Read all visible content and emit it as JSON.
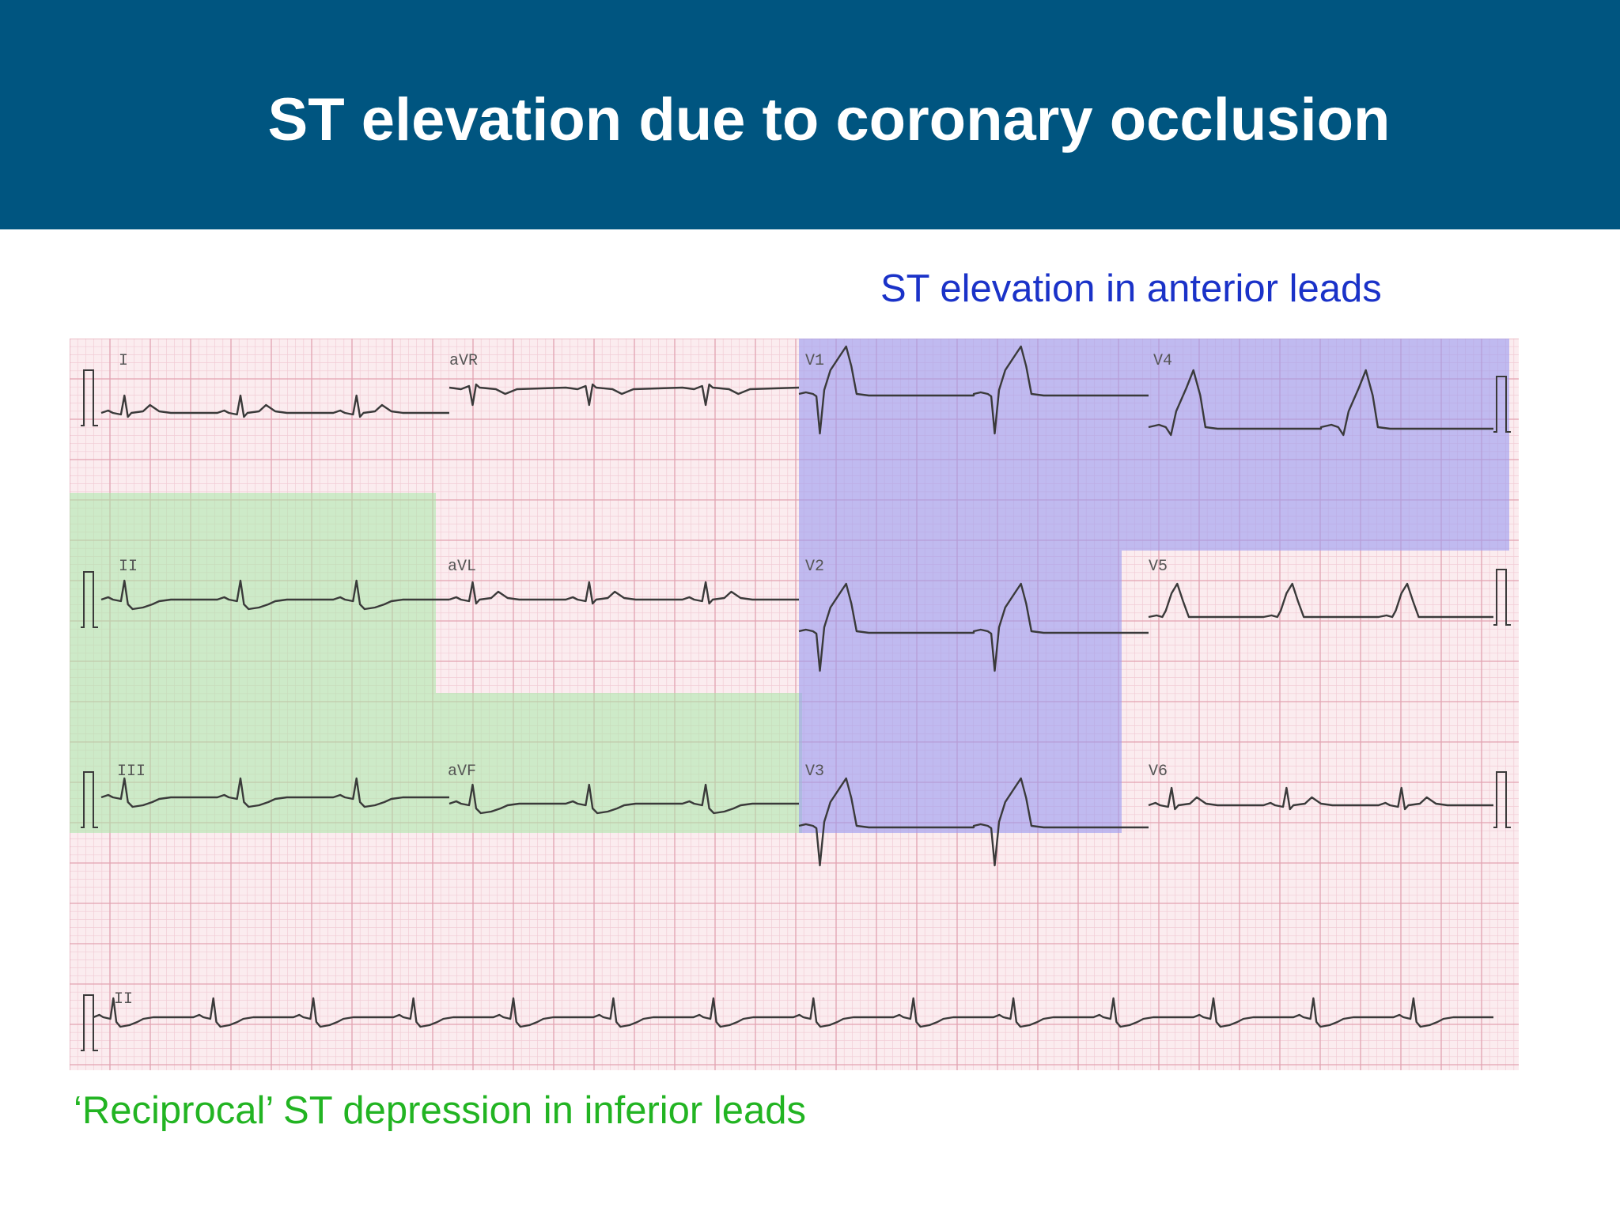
{
  "slide": {
    "title": "ST elevation due to coronary occlusion",
    "header_color": "#005580"
  },
  "annotations": {
    "anterior": {
      "text": "ST elevation in anterior leads",
      "color": "#1a32c8",
      "highlight": "#9a9af0",
      "leads": [
        "V1",
        "V2",
        "V3",
        "V4"
      ]
    },
    "inferior": {
      "text": "‘Reciprocal’ ST depression in inferior leads",
      "color": "#22b422",
      "highlight": "#a8eaa8",
      "leads": [
        "II",
        "III",
        "aVF"
      ]
    }
  },
  "ecg": {
    "paper_color": "#fbecef",
    "grid_color": "#e7a9b6",
    "trace_color": "#3a3a3a",
    "lead_labels": {
      "I": "I",
      "aVR": "aVR",
      "V1": "V1",
      "V4": "V4",
      "II": "II",
      "aVL": "aVL",
      "V2": "V2",
      "V5": "V5",
      "III": "III",
      "aVF": "aVF",
      "V3": "V3",
      "V6": "V6",
      "rhythm": "II"
    }
  }
}
